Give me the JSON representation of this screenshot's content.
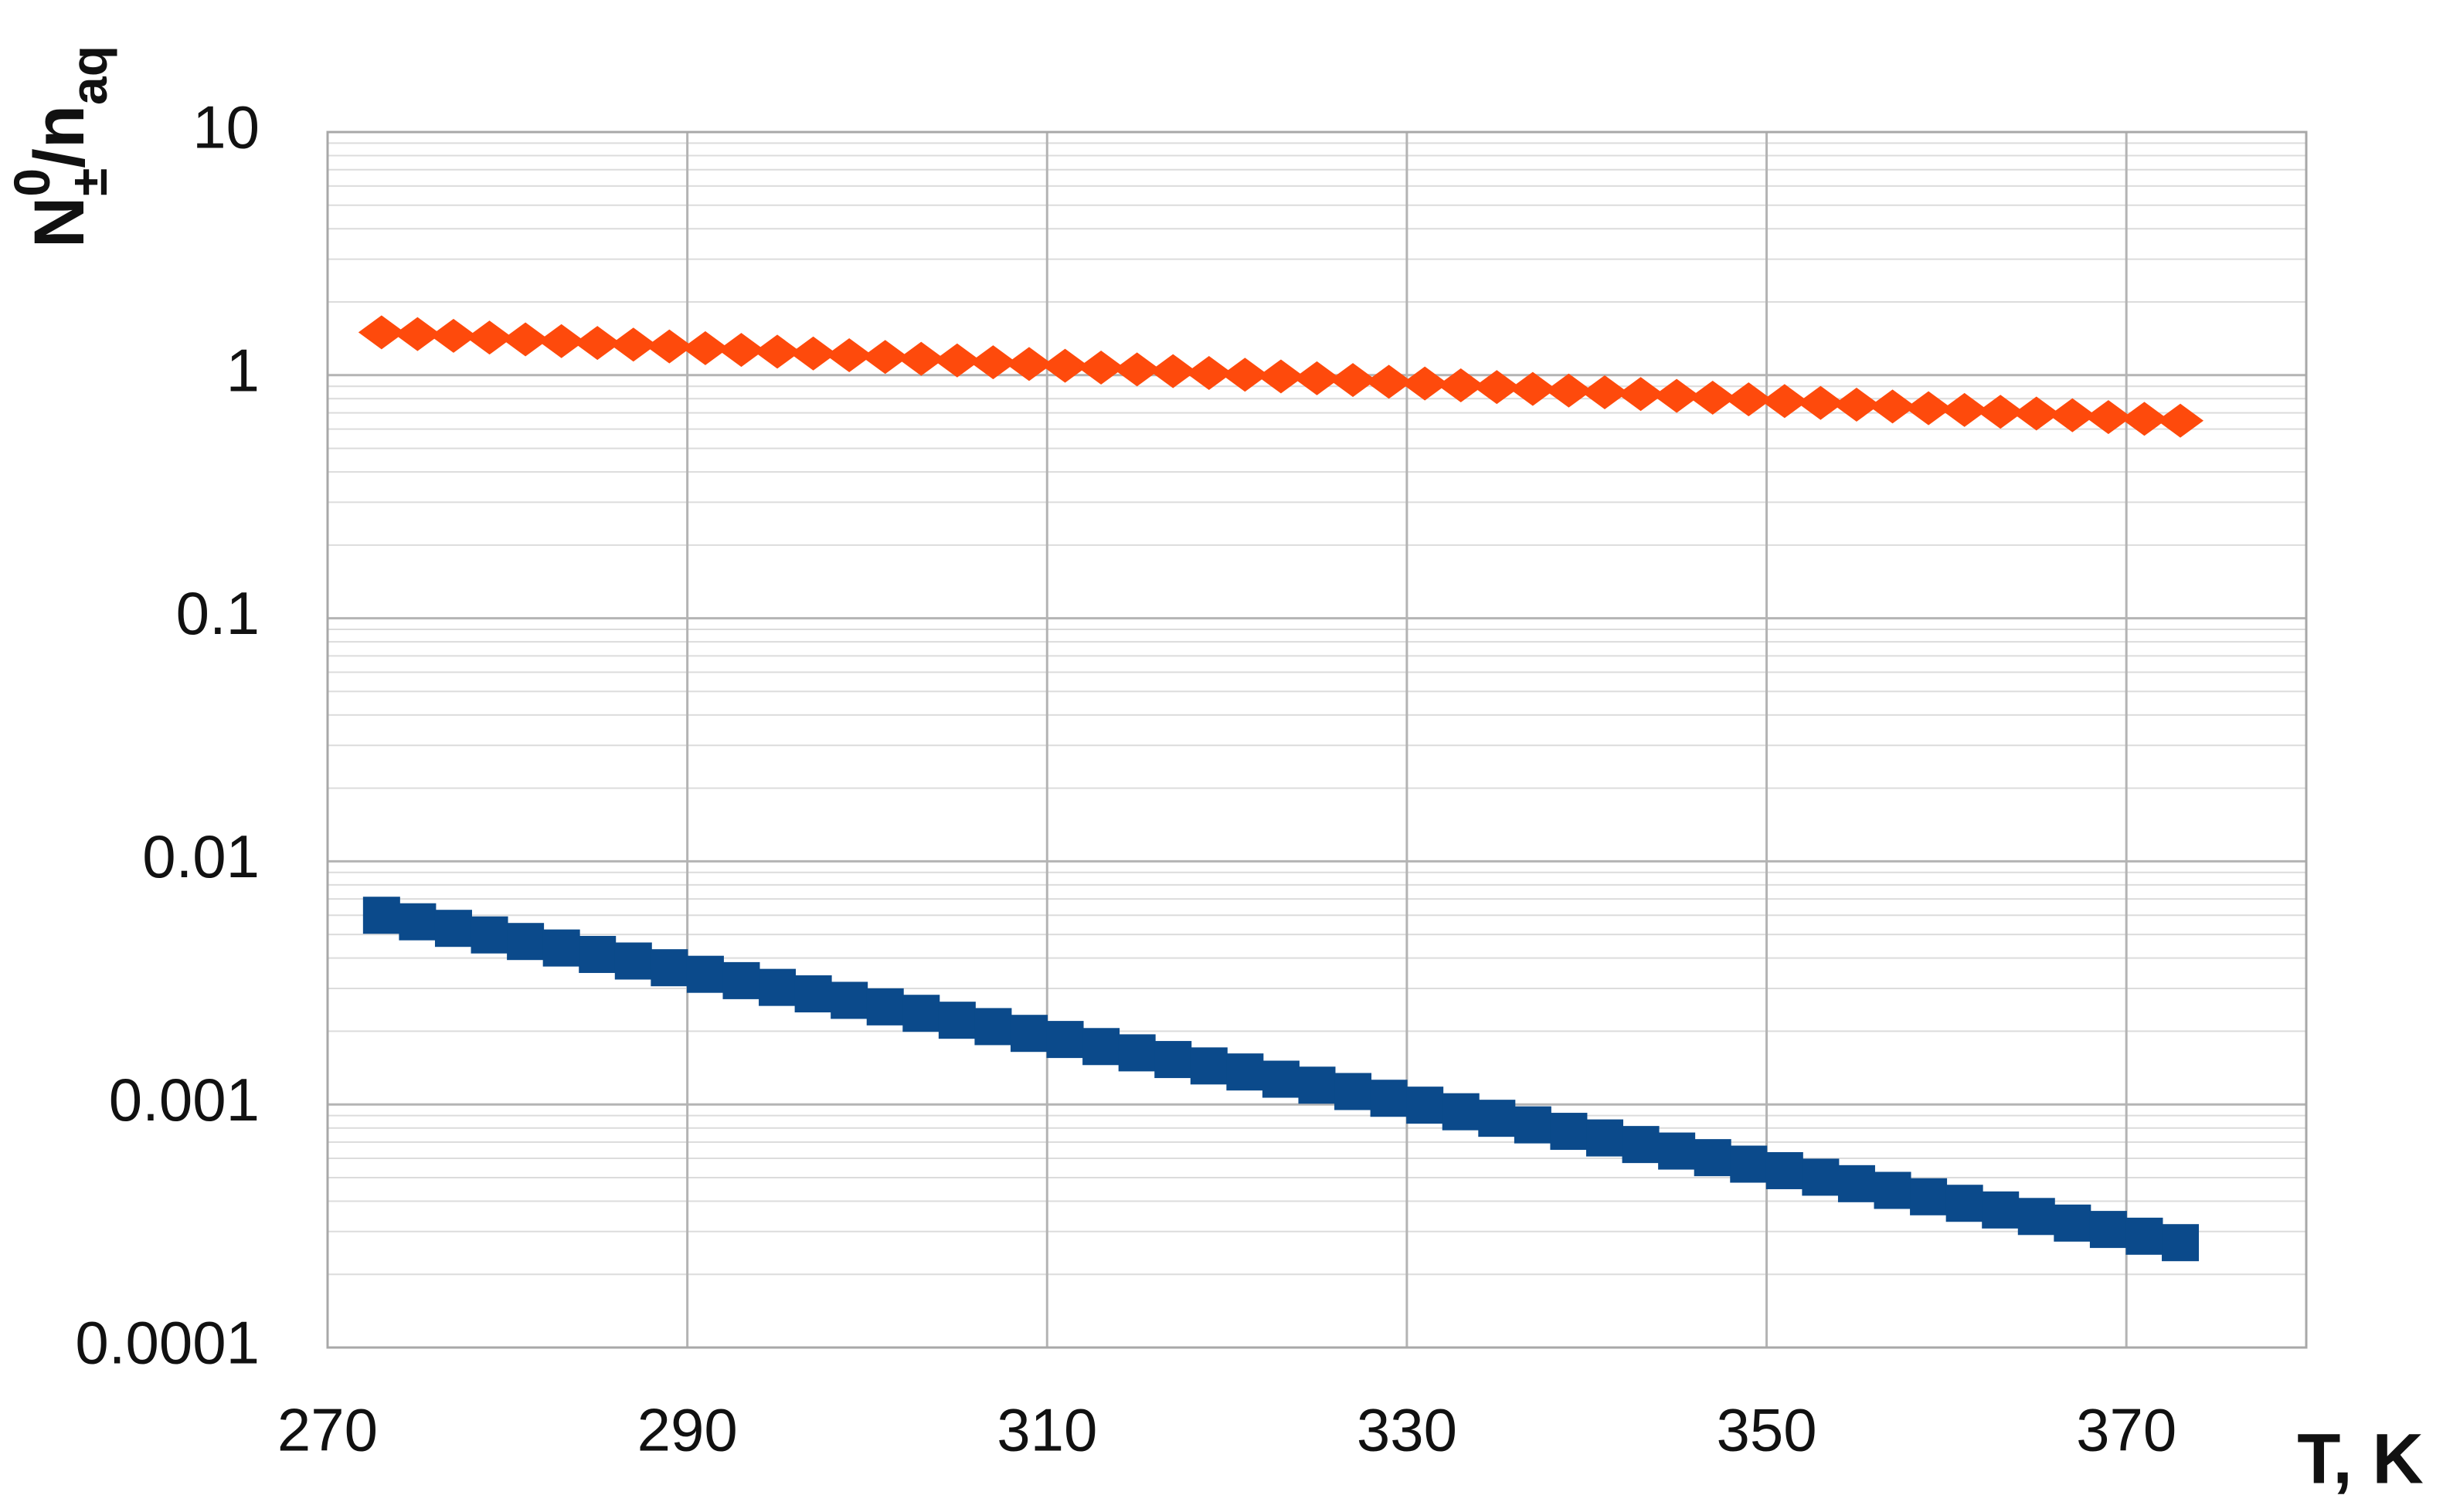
{
  "chart_data": {
    "type": "scatter",
    "ylabel": [
      "N",
      "0",
      "±",
      "/n",
      "aq"
    ],
    "xlabel": "T, K",
    "x": [
      273,
      275,
      277,
      279,
      281,
      283,
      285,
      287,
      289,
      291,
      293,
      295,
      297,
      299,
      301,
      303,
      305,
      307,
      309,
      311,
      313,
      315,
      317,
      319,
      321,
      323,
      325,
      327,
      329,
      331,
      333,
      335,
      337,
      339,
      341,
      343,
      345,
      347,
      349,
      351,
      353,
      355,
      357,
      359,
      361,
      363,
      365,
      367,
      369,
      371,
      373
    ],
    "series": [
      {
        "color": "#fe4a0c",
        "marker": "diamond",
        "values": [
          1.5,
          1.475,
          1.451,
          1.427,
          1.403,
          1.38,
          1.357,
          1.335,
          1.313,
          1.291,
          1.27,
          1.249,
          1.228,
          1.208,
          1.188,
          1.168,
          1.149,
          1.13,
          1.111,
          1.093,
          1.074,
          1.056,
          1.039,
          1.021,
          1.004,
          0.988,
          0.971,
          0.955,
          0.939,
          0.924,
          0.908,
          0.893,
          0.878,
          0.864,
          0.85,
          0.836,
          0.822,
          0.808,
          0.795,
          0.782,
          0.769,
          0.756,
          0.743,
          0.731,
          0.719,
          0.707,
          0.695,
          0.684,
          0.672,
          0.661,
          0.65
        ]
      },
      {
        "color": "#0b4a8b",
        "marker": "square",
        "values": [
          0.006,
          0.00564,
          0.0053,
          0.00498,
          0.00468,
          0.0044,
          0.00414,
          0.00389,
          0.00365,
          0.00343,
          0.00323,
          0.00303,
          0.00285,
          0.00268,
          0.00252,
          0.00237,
          0.00222,
          0.00209,
          0.00196,
          0.00185,
          0.00173,
          0.00163,
          0.00153,
          0.00144,
          0.00136,
          0.00127,
          0.0012,
          0.00113,
          0.00106,
          0.000993,
          0.000933,
          0.000877,
          0.000824,
          0.000775,
          0.000728,
          0.000684,
          0.000643,
          0.000604,
          0.000568,
          0.000534,
          0.000502,
          0.000472,
          0.000443,
          0.000417,
          0.000392,
          0.000368,
          0.000346,
          0.000325,
          0.000306,
          0.000287,
          0.00027
        ]
      }
    ],
    "xlim": [
      270,
      380
    ],
    "xticks": [
      270,
      290,
      310,
      330,
      350,
      370
    ],
    "ylim": [
      0.0001,
      10
    ],
    "yticks": [
      0.0001,
      0.001,
      0.01,
      0.1,
      1,
      10
    ],
    "ylog": true,
    "grid": true,
    "minor_grid": true
  }
}
